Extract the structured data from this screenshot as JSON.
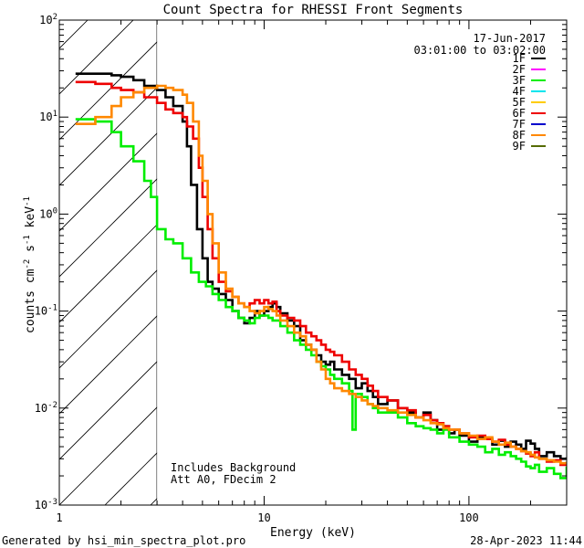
{
  "chart_data": {
    "type": "line",
    "title": "Count Spectra for RHESSI Front Segments",
    "xlabel": "Energy (keV)",
    "ylabel_parts": [
      "counts cm",
      "-2",
      " s",
      "-1",
      " keV",
      "-1"
    ],
    "x_scale": "log",
    "y_scale": "log",
    "xlim": [
      1,
      300
    ],
    "ylim": [
      0.001,
      100
    ],
    "x_ticks": [
      {
        "value": 10,
        "label": "10"
      },
      {
        "value": 100,
        "label": "100"
      },
      {
        "value": 1,
        "label": "1"
      }
    ],
    "y_ticks": [
      {
        "value": 0.001,
        "base": "10",
        "exp": "-3"
      },
      {
        "value": 0.01,
        "base": "10",
        "exp": "-2"
      },
      {
        "value": 0.1,
        "base": "10",
        "exp": "-1"
      },
      {
        "value": 1,
        "base": "10",
        "exp": "0"
      },
      {
        "value": 10,
        "base": "10",
        "exp": "1"
      },
      {
        "value": 100,
        "base": "10",
        "exp": "2"
      }
    ],
    "date": "17-Jun-2017",
    "time_range": "03:01:00 to 03:02:00",
    "excluded_region": {
      "from": 1,
      "to": 3
    },
    "annotations": [
      "Includes Background",
      "Att A0, FDecim 2"
    ],
    "legend": [
      {
        "label": "1F",
        "color": "#000000"
      },
      {
        "label": "2F",
        "color": "#ff00ff"
      },
      {
        "label": "3F",
        "color": "#00ee00"
      },
      {
        "label": "4F",
        "color": "#00e5ee"
      },
      {
        "label": "5F",
        "color": "#ffcc00"
      },
      {
        "label": "6F",
        "color": "#ee0000"
      },
      {
        "label": "7F",
        "color": "#0000cc"
      },
      {
        "label": "8F",
        "color": "#ff8800"
      },
      {
        "label": "9F",
        "color": "#556b00"
      }
    ],
    "series": [
      {
        "name": "1F",
        "color": "#000000",
        "points": [
          [
            1.2,
            28
          ],
          [
            1.5,
            28
          ],
          [
            1.8,
            27
          ],
          [
            2.0,
            26
          ],
          [
            2.3,
            24
          ],
          [
            2.6,
            21
          ],
          [
            3.0,
            19
          ],
          [
            3.3,
            16
          ],
          [
            3.6,
            13
          ],
          [
            4.0,
            9
          ],
          [
            4.2,
            5
          ],
          [
            4.4,
            2
          ],
          [
            4.7,
            0.7
          ],
          [
            5.0,
            0.35
          ],
          [
            5.3,
            0.2
          ],
          [
            5.6,
            0.17
          ],
          [
            6.0,
            0.15
          ],
          [
            6.5,
            0.13
          ],
          [
            7.0,
            0.1
          ],
          [
            7.5,
            0.085
          ],
          [
            8.0,
            0.075
          ],
          [
            8.5,
            0.085
          ],
          [
            9.0,
            0.1
          ],
          [
            9.5,
            0.09
          ],
          [
            10.0,
            0.1
          ],
          [
            10.5,
            0.11
          ],
          [
            11.0,
            0.12
          ],
          [
            11.5,
            0.11
          ],
          [
            12.0,
            0.095
          ],
          [
            13,
            0.08
          ],
          [
            14,
            0.07
          ],
          [
            15,
            0.05
          ],
          [
            16,
            0.045
          ],
          [
            17,
            0.04
          ],
          [
            18,
            0.035
          ],
          [
            19,
            0.03
          ],
          [
            20,
            0.028
          ],
          [
            21,
            0.03
          ],
          [
            22,
            0.025
          ],
          [
            24,
            0.022
          ],
          [
            26,
            0.02
          ],
          [
            28,
            0.016
          ],
          [
            30,
            0.018
          ],
          [
            32,
            0.015
          ],
          [
            34,
            0.013
          ],
          [
            36,
            0.011
          ],
          [
            40,
            0.012
          ],
          [
            45,
            0.01
          ],
          [
            50,
            0.009
          ],
          [
            55,
            0.008
          ],
          [
            60,
            0.009
          ],
          [
            65,
            0.0075
          ],
          [
            70,
            0.006
          ],
          [
            75,
            0.0065
          ],
          [
            80,
            0.0055
          ],
          [
            85,
            0.006
          ],
          [
            90,
            0.0052
          ],
          [
            100,
            0.0045
          ],
          [
            110,
            0.005
          ],
          [
            120,
            0.0048
          ],
          [
            130,
            0.0042
          ],
          [
            140,
            0.0046
          ],
          [
            150,
            0.004
          ],
          [
            160,
            0.0045
          ],
          [
            170,
            0.0042
          ],
          [
            180,
            0.0038
          ],
          [
            190,
            0.0046
          ],
          [
            200,
            0.0043
          ],
          [
            210,
            0.0038
          ],
          [
            220,
            0.0032
          ],
          [
            240,
            0.0035
          ],
          [
            260,
            0.0032
          ],
          [
            280,
            0.003
          ],
          [
            300,
            0.0031
          ]
        ]
      },
      {
        "name": "3F",
        "color": "#00ee00",
        "points": [
          [
            1.2,
            9.5
          ],
          [
            1.5,
            9
          ],
          [
            1.8,
            7
          ],
          [
            2.0,
            5
          ],
          [
            2.3,
            3.5
          ],
          [
            2.6,
            2.2
          ],
          [
            2.8,
            1.5
          ],
          [
            3.0,
            0.7
          ],
          [
            3.3,
            0.55
          ],
          [
            3.6,
            0.5
          ],
          [
            4.0,
            0.35
          ],
          [
            4.4,
            0.25
          ],
          [
            4.8,
            0.2
          ],
          [
            5.2,
            0.18
          ],
          [
            5.6,
            0.15
          ],
          [
            6.0,
            0.13
          ],
          [
            6.5,
            0.11
          ],
          [
            7.0,
            0.1
          ],
          [
            7.5,
            0.085
          ],
          [
            8.0,
            0.08
          ],
          [
            8.5,
            0.075
          ],
          [
            9.0,
            0.085
          ],
          [
            9.5,
            0.09
          ],
          [
            10.0,
            0.09
          ],
          [
            10.5,
            0.085
          ],
          [
            11,
            0.08
          ],
          [
            12,
            0.07
          ],
          [
            13,
            0.06
          ],
          [
            14,
            0.05
          ],
          [
            15,
            0.045
          ],
          [
            16,
            0.04
          ],
          [
            17,
            0.035
          ],
          [
            18,
            0.03
          ],
          [
            19,
            0.027
          ],
          [
            20,
            0.025
          ],
          [
            21,
            0.022
          ],
          [
            22,
            0.02
          ],
          [
            24,
            0.018
          ],
          [
            26,
            0.015
          ],
          [
            27,
            0.006
          ],
          [
            28,
            0.014
          ],
          [
            30,
            0.013
          ],
          [
            32,
            0.011
          ],
          [
            34,
            0.01
          ],
          [
            36,
            0.009
          ],
          [
            40,
            0.009
          ],
          [
            45,
            0.008
          ],
          [
            50,
            0.007
          ],
          [
            55,
            0.0065
          ],
          [
            60,
            0.0062
          ],
          [
            65,
            0.006
          ],
          [
            70,
            0.0055
          ],
          [
            75,
            0.006
          ],
          [
            80,
            0.005
          ],
          [
            90,
            0.0045
          ],
          [
            100,
            0.0042
          ],
          [
            110,
            0.004
          ],
          [
            120,
            0.0035
          ],
          [
            130,
            0.0038
          ],
          [
            140,
            0.0033
          ],
          [
            150,
            0.0035
          ],
          [
            160,
            0.0032
          ],
          [
            170,
            0.003
          ],
          [
            180,
            0.0028
          ],
          [
            190,
            0.0025
          ],
          [
            200,
            0.0024
          ],
          [
            210,
            0.0026
          ],
          [
            220,
            0.0022
          ],
          [
            240,
            0.0024
          ],
          [
            260,
            0.0021
          ],
          [
            280,
            0.0019
          ],
          [
            300,
            0.0025
          ]
        ]
      },
      {
        "name": "6F",
        "color": "#ee0000",
        "points": [
          [
            1.2,
            23
          ],
          [
            1.5,
            22
          ],
          [
            1.8,
            20
          ],
          [
            2.0,
            19
          ],
          [
            2.3,
            18
          ],
          [
            2.6,
            16
          ],
          [
            3.0,
            14
          ],
          [
            3.3,
            12
          ],
          [
            3.6,
            11
          ],
          [
            4.0,
            10
          ],
          [
            4.2,
            8
          ],
          [
            4.5,
            6
          ],
          [
            4.8,
            3
          ],
          [
            5.0,
            1.5
          ],
          [
            5.3,
            0.7
          ],
          [
            5.6,
            0.35
          ],
          [
            6.0,
            0.2
          ],
          [
            6.5,
            0.16
          ],
          [
            7.0,
            0.14
          ],
          [
            7.5,
            0.12
          ],
          [
            8.0,
            0.11
          ],
          [
            8.5,
            0.12
          ],
          [
            9.0,
            0.13
          ],
          [
            9.5,
            0.12
          ],
          [
            10.0,
            0.13
          ],
          [
            10.5,
            0.12
          ],
          [
            11.0,
            0.125
          ],
          [
            11.5,
            0.1
          ],
          [
            12,
            0.09
          ],
          [
            13,
            0.085
          ],
          [
            14,
            0.08
          ],
          [
            15,
            0.07
          ],
          [
            16,
            0.06
          ],
          [
            17,
            0.055
          ],
          [
            18,
            0.05
          ],
          [
            19,
            0.045
          ],
          [
            20,
            0.04
          ],
          [
            21,
            0.038
          ],
          [
            22,
            0.035
          ],
          [
            24,
            0.03
          ],
          [
            26,
            0.025
          ],
          [
            28,
            0.022
          ],
          [
            30,
            0.02
          ],
          [
            32,
            0.017
          ],
          [
            34,
            0.015
          ],
          [
            36,
            0.013
          ],
          [
            40,
            0.012
          ],
          [
            45,
            0.01
          ],
          [
            50,
            0.0095
          ],
          [
            55,
            0.008
          ],
          [
            60,
            0.0085
          ],
          [
            65,
            0.0075
          ],
          [
            70,
            0.007
          ],
          [
            75,
            0.0065
          ],
          [
            80,
            0.006
          ],
          [
            90,
            0.0055
          ],
          [
            100,
            0.005
          ],
          [
            110,
            0.0052
          ],
          [
            120,
            0.0048
          ],
          [
            130,
            0.0045
          ],
          [
            140,
            0.0047
          ],
          [
            150,
            0.0042
          ],
          [
            160,
            0.004
          ],
          [
            170,
            0.0038
          ],
          [
            180,
            0.0036
          ],
          [
            190,
            0.0034
          ],
          [
            200,
            0.0032
          ],
          [
            210,
            0.0035
          ],
          [
            220,
            0.003
          ],
          [
            240,
            0.0028
          ],
          [
            260,
            0.0029
          ],
          [
            280,
            0.0026
          ],
          [
            300,
            0.0027
          ]
        ]
      },
      {
        "name": "8F",
        "color": "#ff8800",
        "points": [
          [
            1.2,
            8.5
          ],
          [
            1.5,
            10
          ],
          [
            1.8,
            13
          ],
          [
            2.0,
            16
          ],
          [
            2.3,
            18
          ],
          [
            2.6,
            20
          ],
          [
            3.0,
            21
          ],
          [
            3.3,
            20
          ],
          [
            3.6,
            19
          ],
          [
            4.0,
            17
          ],
          [
            4.2,
            14
          ],
          [
            4.5,
            9
          ],
          [
            4.8,
            4
          ],
          [
            5.0,
            2.2
          ],
          [
            5.3,
            1
          ],
          [
            5.6,
            0.5
          ],
          [
            6.0,
            0.25
          ],
          [
            6.5,
            0.17
          ],
          [
            7.0,
            0.14
          ],
          [
            7.5,
            0.12
          ],
          [
            8.0,
            0.11
          ],
          [
            8.5,
            0.1
          ],
          [
            9.0,
            0.095
          ],
          [
            9.5,
            0.1
          ],
          [
            10.0,
            0.11
          ],
          [
            10.5,
            0.105
          ],
          [
            11,
            0.1
          ],
          [
            11.5,
            0.09
          ],
          [
            12,
            0.08
          ],
          [
            13,
            0.07
          ],
          [
            14,
            0.06
          ],
          [
            15,
            0.055
          ],
          [
            16,
            0.045
          ],
          [
            17,
            0.04
          ],
          [
            18,
            0.03
          ],
          [
            19,
            0.025
          ],
          [
            20,
            0.02
          ],
          [
            21,
            0.018
          ],
          [
            22,
            0.016
          ],
          [
            24,
            0.015
          ],
          [
            26,
            0.014
          ],
          [
            28,
            0.013
          ],
          [
            30,
            0.012
          ],
          [
            32,
            0.011
          ],
          [
            34,
            0.0105
          ],
          [
            36,
            0.01
          ],
          [
            40,
            0.0095
          ],
          [
            45,
            0.009
          ],
          [
            50,
            0.0085
          ],
          [
            55,
            0.008
          ],
          [
            60,
            0.0075
          ],
          [
            65,
            0.007
          ],
          [
            70,
            0.0068
          ],
          [
            75,
            0.0062
          ],
          [
            80,
            0.006
          ],
          [
            90,
            0.0055
          ],
          [
            100,
            0.0052
          ],
          [
            110,
            0.0048
          ],
          [
            120,
            0.005
          ],
          [
            130,
            0.0045
          ],
          [
            140,
            0.0042
          ],
          [
            150,
            0.0044
          ],
          [
            160,
            0.004
          ],
          [
            170,
            0.0038
          ],
          [
            180,
            0.0036
          ],
          [
            190,
            0.0035
          ],
          [
            200,
            0.0033
          ],
          [
            210,
            0.0031
          ],
          [
            220,
            0.003
          ],
          [
            240,
            0.0029
          ],
          [
            260,
            0.0028
          ],
          [
            280,
            0.0027
          ],
          [
            300,
            0.0028
          ]
        ]
      }
    ]
  },
  "footer": {
    "generator": "Generated by hsi_min_spectra_plot.pro",
    "timestamp": "28-Apr-2023 11:44"
  }
}
